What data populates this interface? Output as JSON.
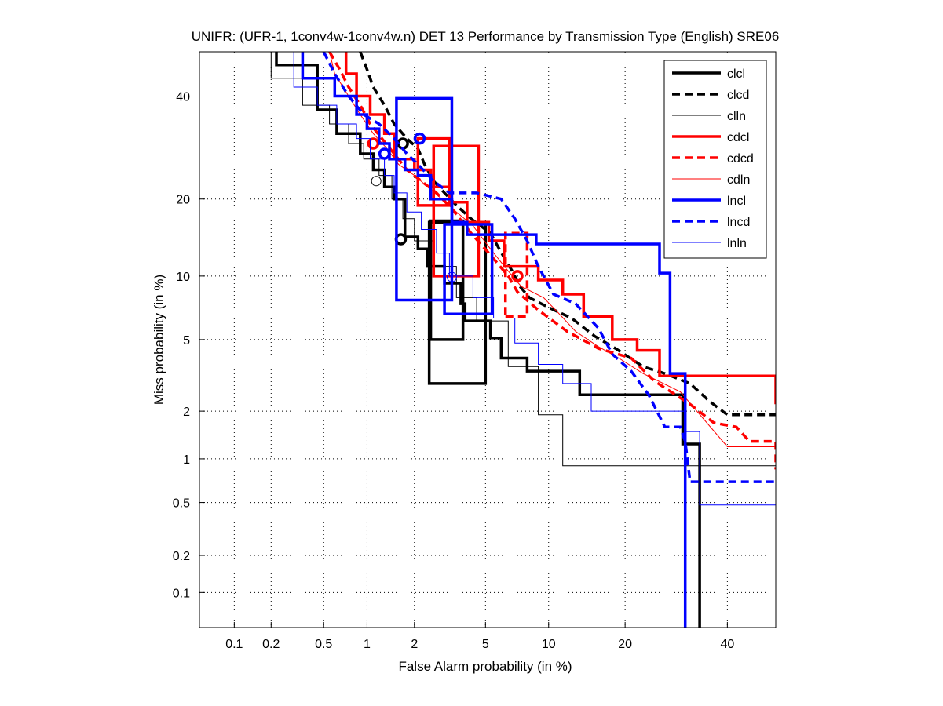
{
  "chart_data": {
    "type": "line",
    "subtype": "DET (normal deviate scale, step curves)",
    "title": "UNIFR: (UFR-1, 1conv4w-1conv4w.n) DET 13 Performance by Transmission Type (English) SRE06",
    "xlabel": "False Alarm probability (in %)",
    "ylabel": "Miss probability (in %)",
    "xlim": [
      0.05,
      51
    ],
    "ylim": [
      0.05,
      50
    ],
    "xticks": [
      0.1,
      0.2,
      0.5,
      1,
      2,
      5,
      10,
      20,
      40
    ],
    "xtick_labels": [
      "0.1",
      "0.2",
      "0.5",
      "1",
      "2",
      "5",
      "10",
      "20",
      "40"
    ],
    "yticks": [
      0.1,
      0.2,
      0.5,
      1,
      2,
      5,
      10,
      20,
      40
    ],
    "ytick_labels": [
      "0.1",
      "0.2",
      "0.5",
      "1",
      "2",
      "5",
      "10",
      "20",
      "40"
    ],
    "grid": true,
    "legend_position": "top-right",
    "series": [
      {
        "name": "clcl",
        "color": "#000000",
        "style": "solid",
        "weight": "thick",
        "points": [
          [
            0.22,
            50
          ],
          [
            0.22,
            47
          ],
          [
            0.45,
            47
          ],
          [
            0.45,
            37
          ],
          [
            0.62,
            37
          ],
          [
            0.62,
            32
          ],
          [
            0.9,
            32
          ],
          [
            0.9,
            28
          ],
          [
            1.1,
            28
          ],
          [
            1.1,
            25
          ],
          [
            1.3,
            25
          ],
          [
            1.3,
            22
          ],
          [
            1.5,
            22
          ],
          [
            1.5,
            20
          ],
          [
            1.75,
            20
          ],
          [
            1.75,
            14.5
          ],
          [
            2.1,
            14.5
          ],
          [
            2.1,
            13
          ],
          [
            2.4,
            13
          ],
          [
            2.4,
            11
          ],
          [
            3.0,
            11
          ],
          [
            3.0,
            9.3
          ],
          [
            3.7,
            9.3
          ],
          [
            3.7,
            7.5
          ],
          [
            3.9,
            7.5
          ],
          [
            3.9,
            6.2
          ],
          [
            5.3,
            6.2
          ],
          [
            5.3,
            5.1
          ],
          [
            6.0,
            5.1
          ],
          [
            6.0,
            4.0
          ],
          [
            8.0,
            4.0
          ],
          [
            8.0,
            3.4
          ],
          [
            13.5,
            3.4
          ],
          [
            13.5,
            2.5
          ],
          [
            30.5,
            2.5
          ],
          [
            30.5,
            1.25
          ],
          [
            34,
            1.25
          ],
          [
            34,
            0.05
          ]
        ],
        "operating_point": [
          1.65,
          14.2
        ],
        "ci_box": [
          [
            2.45,
            2.9
          ],
          [
            5.0,
            16.5
          ]
        ],
        "ci_box2": [
          [
            2.5,
            5.0
          ],
          [
            3.8,
            16.7
          ]
        ]
      },
      {
        "name": "clcd",
        "color": "#000000",
        "style": "dashed",
        "weight": "thick",
        "points": [
          [
            0.9,
            50
          ],
          [
            1.0,
            46
          ],
          [
            1.1,
            42
          ],
          [
            1.3,
            38
          ],
          [
            1.5,
            34
          ],
          [
            1.8,
            31
          ],
          [
            2.1,
            29
          ],
          [
            2.3,
            26
          ],
          [
            2.6,
            23
          ],
          [
            3.0,
            21
          ],
          [
            3.5,
            19
          ],
          [
            4.2,
            17
          ],
          [
            5.3,
            15
          ],
          [
            6.2,
            12
          ],
          [
            6.8,
            10.5
          ],
          [
            7.4,
            9
          ],
          [
            8.2,
            8
          ],
          [
            10,
            7.2
          ],
          [
            12.5,
            6.4
          ],
          [
            15.5,
            5.2
          ],
          [
            18.5,
            4.5
          ],
          [
            23,
            3.6
          ],
          [
            27,
            3.3
          ],
          [
            32,
            2.9
          ],
          [
            36,
            2.3
          ],
          [
            40,
            1.9
          ],
          [
            51,
            1.9
          ]
        ],
        "operating_point": [
          1.7,
          30
        ],
        "ci_box": null
      },
      {
        "name": "clln",
        "color": "#000000",
        "style": "solid",
        "weight": "thin",
        "points": [
          [
            0.2,
            50
          ],
          [
            0.2,
            44
          ],
          [
            0.35,
            44
          ],
          [
            0.35,
            38
          ],
          [
            0.55,
            38
          ],
          [
            0.55,
            34
          ],
          [
            0.75,
            34
          ],
          [
            0.75,
            30
          ],
          [
            0.95,
            30
          ],
          [
            0.95,
            27
          ],
          [
            1.2,
            27
          ],
          [
            1.2,
            24
          ],
          [
            1.45,
            24
          ],
          [
            1.45,
            20
          ],
          [
            1.7,
            20
          ],
          [
            1.7,
            17
          ],
          [
            2.0,
            17
          ],
          [
            2.0,
            14
          ],
          [
            2.6,
            14
          ],
          [
            2.6,
            11
          ],
          [
            3.5,
            11
          ],
          [
            3.5,
            8
          ],
          [
            4.5,
            8
          ],
          [
            4.5,
            6.2
          ],
          [
            6.5,
            6.2
          ],
          [
            6.5,
            3.6
          ],
          [
            9.0,
            3.6
          ],
          [
            9.0,
            1.9
          ],
          [
            11.5,
            1.9
          ],
          [
            11.5,
            0.9
          ],
          [
            51,
            0.9
          ]
        ],
        "operating_point": [
          1.15,
          23
        ],
        "ci_box": null
      },
      {
        "name": "cdcl",
        "color": "#ff0000",
        "style": "solid",
        "weight": "thick",
        "points": [
          [
            0.72,
            50
          ],
          [
            0.72,
            45
          ],
          [
            0.85,
            45
          ],
          [
            0.85,
            40
          ],
          [
            1.05,
            40
          ],
          [
            1.05,
            36
          ],
          [
            1.3,
            36
          ],
          [
            1.3,
            32
          ],
          [
            1.5,
            32
          ],
          [
            1.5,
            27
          ],
          [
            2.0,
            27
          ],
          [
            2.0,
            25
          ],
          [
            2.5,
            25
          ],
          [
            2.5,
            22
          ],
          [
            3.2,
            22
          ],
          [
            3.2,
            19.5
          ],
          [
            4.0,
            19.5
          ],
          [
            4.0,
            16.5
          ],
          [
            5.2,
            16.5
          ],
          [
            5.2,
            14
          ],
          [
            6.2,
            14
          ],
          [
            6.2,
            11
          ],
          [
            9.0,
            11
          ],
          [
            9.0,
            9.6
          ],
          [
            11.5,
            9.6
          ],
          [
            11.5,
            8.3
          ],
          [
            14,
            8.3
          ],
          [
            14,
            6.5
          ],
          [
            18,
            6.5
          ],
          [
            18,
            5.0
          ],
          [
            22,
            5.0
          ],
          [
            22,
            4.4
          ],
          [
            26,
            4.4
          ],
          [
            26,
            3.2
          ],
          [
            51,
            3.2
          ],
          [
            51,
            2.2
          ]
        ],
        "operating_point": [
          1.1,
          30
        ],
        "ci_box": [
          [
            2.1,
            19
          ],
          [
            3.2,
            31
          ]
        ],
        "ci_box2": [
          [
            2.6,
            10
          ],
          [
            4.6,
            29.5
          ]
        ]
      },
      {
        "name": "cdcd",
        "color": "#ff0000",
        "style": "dashed",
        "weight": "thick",
        "points": [
          [
            0.55,
            50
          ],
          [
            0.65,
            46
          ],
          [
            0.75,
            42
          ],
          [
            0.9,
            38
          ],
          [
            1.05,
            34
          ],
          [
            1.25,
            31
          ],
          [
            1.5,
            28
          ],
          [
            1.8,
            25
          ],
          [
            2.2,
            23
          ],
          [
            2.7,
            21
          ],
          [
            3.3,
            18.5
          ],
          [
            4.2,
            15
          ],
          [
            5.2,
            12.5
          ],
          [
            6.5,
            10
          ],
          [
            7.2,
            8.5
          ],
          [
            9,
            7.0
          ],
          [
            12,
            5.5
          ],
          [
            16,
            4.5
          ],
          [
            21,
            4.0
          ],
          [
            25,
            3.0
          ],
          [
            32,
            2.2
          ],
          [
            37,
            1.7
          ],
          [
            42,
            1.6
          ],
          [
            45,
            1.3
          ],
          [
            51,
            1.3
          ],
          [
            51,
            0.85
          ]
        ],
        "operating_point": [
          7.2,
          10
        ],
        "ci_box": [
          [
            6.3,
            6.5
          ],
          [
            8.0,
            15
          ]
        ]
      },
      {
        "name": "cdln",
        "color": "#ff0000",
        "style": "solid",
        "weight": "thin",
        "points": [
          [
            0.55,
            50
          ],
          [
            0.6,
            45
          ],
          [
            0.75,
            40
          ],
          [
            0.9,
            36
          ],
          [
            1.1,
            32
          ],
          [
            1.35,
            29
          ],
          [
            1.6,
            26
          ],
          [
            2.0,
            24
          ],
          [
            2.4,
            22
          ],
          [
            2.9,
            20
          ],
          [
            3.5,
            18
          ],
          [
            4.3,
            16
          ],
          [
            5.3,
            13
          ],
          [
            6.5,
            10.5
          ],
          [
            7.5,
            9.0
          ],
          [
            9.5,
            8.0
          ],
          [
            11,
            6.8
          ],
          [
            13,
            5.5
          ],
          [
            16,
            4.6
          ],
          [
            19,
            4.0
          ],
          [
            23,
            3.3
          ],
          [
            30,
            2.6
          ],
          [
            40,
            1.2
          ],
          [
            51,
            1.2
          ]
        ],
        "operating_point": null,
        "ci_box": null
      },
      {
        "name": "lncl",
        "color": "#0000ff",
        "style": "solid",
        "weight": "thick",
        "points": [
          [
            0.35,
            50
          ],
          [
            0.35,
            44
          ],
          [
            0.6,
            44
          ],
          [
            0.6,
            40
          ],
          [
            0.85,
            40
          ],
          [
            0.85,
            36
          ],
          [
            1.0,
            36
          ],
          [
            1.0,
            33
          ],
          [
            1.2,
            33
          ],
          [
            1.2,
            30
          ],
          [
            1.4,
            30
          ],
          [
            1.4,
            27
          ],
          [
            1.75,
            27
          ],
          [
            1.75,
            25
          ],
          [
            2.1,
            25
          ],
          [
            2.1,
            24
          ],
          [
            2.5,
            24
          ],
          [
            2.5,
            20
          ],
          [
            3.3,
            20
          ],
          [
            3.3,
            16.5
          ],
          [
            4.0,
            16.5
          ],
          [
            4.0,
            14.8
          ],
          [
            8.8,
            14.8
          ],
          [
            8.8,
            13.6
          ],
          [
            26,
            13.6
          ],
          [
            26,
            10.3
          ],
          [
            28,
            10.3
          ],
          [
            28,
            3.3
          ],
          [
            31,
            3.3
          ],
          [
            31,
            0.05
          ]
        ],
        "operating_point": [
          1.3,
          28
        ],
        "ci_box": [
          [
            1.55,
            7.8
          ],
          [
            3.3,
            39.5
          ]
        ],
        "ci_box2": [
          [
            3.0,
            6.7
          ],
          [
            5.4,
            16.2
          ]
        ]
      },
      {
        "name": "lncd",
        "color": "#0000ff",
        "style": "dashed",
        "weight": "thick",
        "points": [
          [
            0.5,
            50
          ],
          [
            0.6,
            45
          ],
          [
            0.75,
            40
          ],
          [
            0.95,
            36
          ],
          [
            1.2,
            34
          ],
          [
            1.5,
            31
          ],
          [
            1.8,
            28
          ],
          [
            2.1,
            26
          ],
          [
            2.6,
            23
          ],
          [
            3.2,
            21
          ],
          [
            4.5,
            21
          ],
          [
            6.0,
            20
          ],
          [
            7.0,
            17
          ],
          [
            8.0,
            14
          ],
          [
            9.0,
            11
          ],
          [
            10.5,
            8.3
          ],
          [
            13,
            7.5
          ],
          [
            16,
            5.7
          ],
          [
            18,
            4.2
          ],
          [
            21,
            3.4
          ],
          [
            24,
            2.5
          ],
          [
            27,
            1.6
          ],
          [
            30,
            1.6
          ],
          [
            31,
            1.3
          ],
          [
            32,
            0.7
          ],
          [
            51,
            0.7
          ]
        ],
        "operating_point": [
          2.15,
          31
        ],
        "ci_box": null
      },
      {
        "name": "lnln",
        "color": "#0000ff",
        "style": "solid",
        "weight": "thin",
        "points": [
          [
            0.3,
            50
          ],
          [
            0.3,
            42
          ],
          [
            0.45,
            42
          ],
          [
            0.45,
            38
          ],
          [
            0.62,
            38
          ],
          [
            0.62,
            34
          ],
          [
            0.85,
            34
          ],
          [
            0.85,
            31
          ],
          [
            1.05,
            31
          ],
          [
            1.05,
            27
          ],
          [
            1.3,
            27
          ],
          [
            1.3,
            24
          ],
          [
            1.5,
            24
          ],
          [
            1.5,
            21
          ],
          [
            1.8,
            21
          ],
          [
            1.8,
            18
          ],
          [
            2.2,
            18
          ],
          [
            2.2,
            15.5
          ],
          [
            2.7,
            15.5
          ],
          [
            2.7,
            12.5
          ],
          [
            3.2,
            12.5
          ],
          [
            3.2,
            10
          ],
          [
            4.3,
            10
          ],
          [
            4.3,
            8.0
          ],
          [
            5.5,
            8.0
          ],
          [
            5.5,
            6.4
          ],
          [
            7.0,
            6.4
          ],
          [
            7.0,
            4.8
          ],
          [
            9,
            4.8
          ],
          [
            9,
            3.7
          ],
          [
            11.5,
            3.7
          ],
          [
            11.5,
            2.9
          ],
          [
            15,
            2.9
          ],
          [
            15,
            2.0
          ],
          [
            31,
            2.0
          ],
          [
            31,
            1.5
          ],
          [
            34,
            1.5
          ],
          [
            34,
            0.48
          ],
          [
            51,
            0.48
          ]
        ],
        "operating_point": [
          3.3,
          9.9
        ],
        "ci_box": null
      }
    ]
  }
}
